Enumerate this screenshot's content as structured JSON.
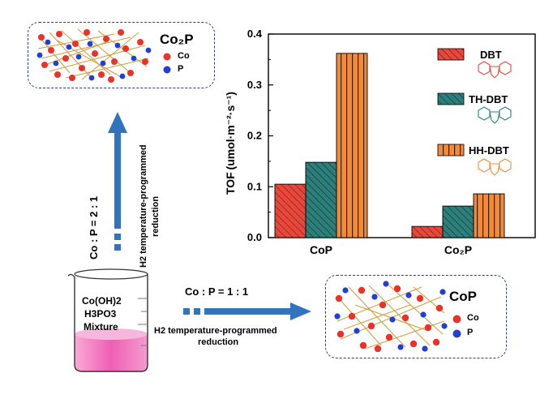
{
  "scheme": {
    "top_phase": {
      "name": "Co₂P",
      "legend": [
        {
          "label": "Co",
          "color": "#e8322a"
        },
        {
          "label": "P",
          "color": "#1f3fd6"
        }
      ]
    },
    "bottom_phase": {
      "name": "CoP",
      "legend": [
        {
          "label": "Co",
          "color": "#e8322a"
        },
        {
          "label": "P",
          "color": "#1f3fd6"
        }
      ]
    },
    "beaker": {
      "lines": [
        "Co(OH)2",
        "H3PO3",
        "Mixture"
      ],
      "liquid_color": "#ef5fb4"
    },
    "vertical_route": {
      "ratio": "Co : P = 2 : 1",
      "process": [
        "H2 temperature-programmed",
        "reduction"
      ]
    },
    "horizontal_route": {
      "ratio": "Co : P = 1 : 1",
      "process": [
        "H2 temperature-programmed",
        "reduction"
      ]
    },
    "arrow_color": "#2f74bd",
    "frame_color": "#2a3f7a"
  },
  "chart_data": {
    "type": "bar",
    "categories": [
      "CoP",
      "Co₂P"
    ],
    "series": [
      {
        "name": "DBT",
        "values": [
          0.105,
          0.022
        ],
        "color": "#e8473b",
        "pattern": "diagonal"
      },
      {
        "name": "TH-DBT",
        "values": [
          0.148,
          0.062
        ],
        "color": "#2c7f7b",
        "pattern": "diagonal"
      },
      {
        "name": "HH-DBT",
        "values": [
          0.362,
          0.086
        ],
        "color": "#f28a3c",
        "pattern": "vertical"
      }
    ],
    "ylabel": "TOF (umol·m⁻²·s⁻¹)",
    "ylim": [
      0,
      0.4
    ],
    "yticks": [
      "0.0",
      "0.1",
      "0.2",
      "0.3",
      "0.4"
    ],
    "legend_position": "right",
    "grid": false
  }
}
